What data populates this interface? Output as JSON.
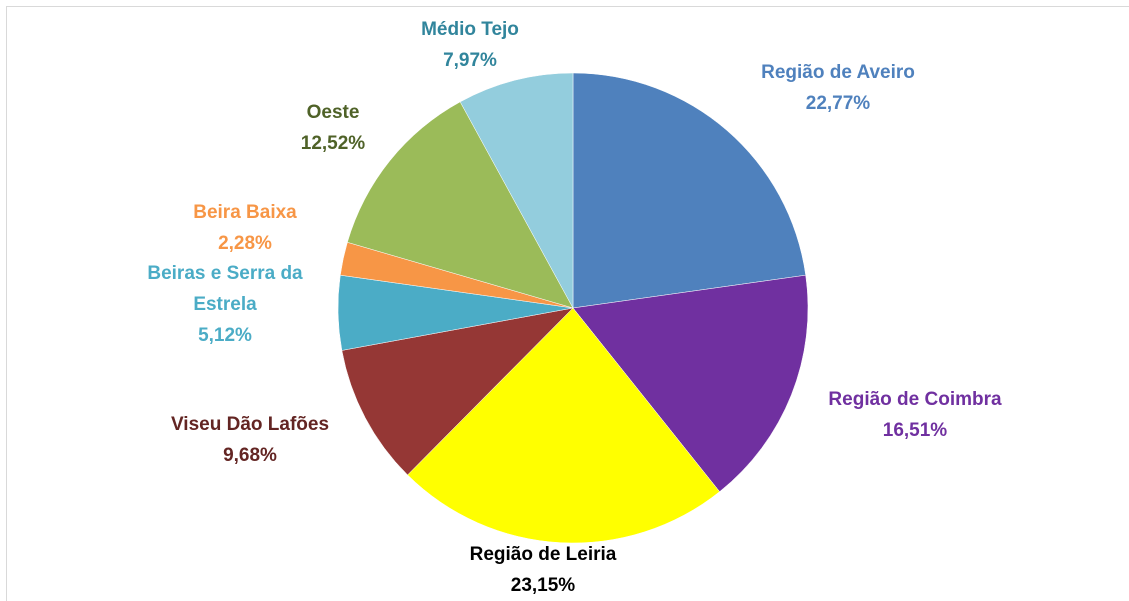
{
  "chart_data": {
    "type": "pie",
    "categories": [
      "Região de Aveiro",
      "Região de Coimbra",
      "Região de Leiria",
      "Viseu Dão Lafões",
      "Beiras e Serra da Estrela",
      "Beira Baixa",
      "Oeste",
      "Médio Tejo"
    ],
    "values": [
      22.77,
      16.51,
      23.15,
      9.68,
      5.12,
      2.28,
      12.52,
      7.97
    ],
    "value_labels": [
      "22,77%",
      "16,51%",
      "23,15%",
      "9,68%",
      "5,12%",
      "2,28%",
      "12,52%",
      "7,97%"
    ],
    "colors": [
      "#4f81bd",
      "#7030a0",
      "#ffff00",
      "#953735",
      "#4bacc6",
      "#f79646",
      "#9bbb59",
      "#93cddd"
    ],
    "label_colors": [
      "#4f81bd",
      "#7030a0",
      "#000000",
      "#632523",
      "#4bacc6",
      "#f79646",
      "#4f6228",
      "#31859c"
    ]
  }
}
